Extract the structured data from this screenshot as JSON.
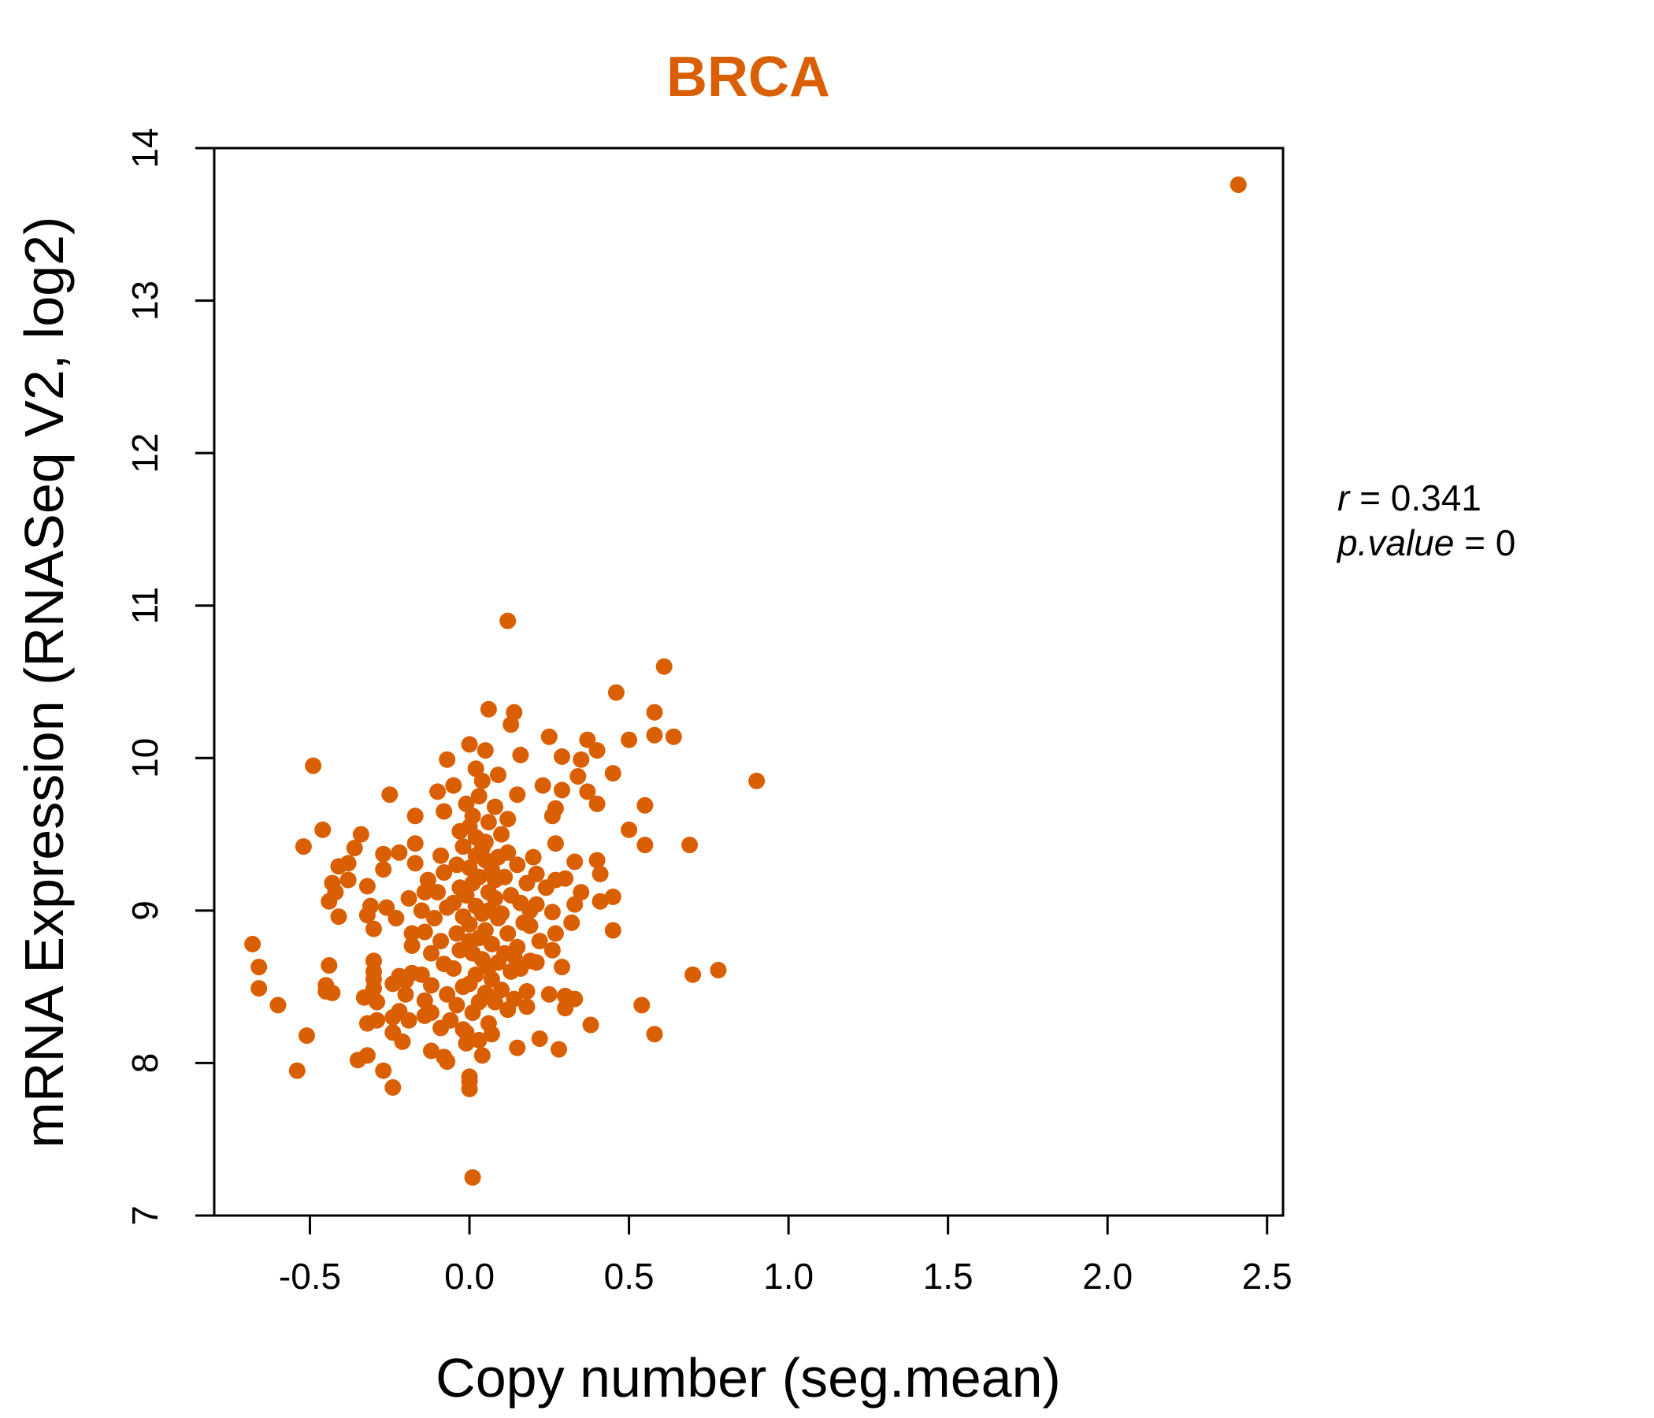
{
  "chart_data": {
    "type": "scatter",
    "title": "BRCA",
    "xlabel": "Copy number (seg.mean)",
    "ylabel": "mRNA Expression (RNASeq V2, log2)",
    "xlim": [
      -0.8,
      2.55
    ],
    "ylim": [
      7,
      14
    ],
    "x_ticks": [
      -0.5,
      0.0,
      0.5,
      1.0,
      1.5,
      2.0,
      2.5
    ],
    "x_tick_labels": [
      "-0.5",
      "0.0",
      "0.5",
      "1.0",
      "1.5",
      "2.0",
      "2.5"
    ],
    "y_ticks": [
      7,
      8,
      9,
      10,
      11,
      12,
      13,
      14
    ],
    "y_tick_labels": [
      "7",
      "8",
      "9",
      "10",
      "11",
      "12",
      "13",
      "14"
    ],
    "grid": false,
    "point_color": "#D95F02",
    "annotations": {
      "r_label": "r",
      "r_value": "0.341",
      "p_label": "p.value",
      "p_value": "0"
    },
    "points": [
      {
        "x": 2.41,
        "y": 13.76
      },
      {
        "x": 0.12,
        "y": 10.9
      },
      {
        "x": 0.61,
        "y": 10.6
      },
      {
        "x": 0.46,
        "y": 10.43
      },
      {
        "x": 0.06,
        "y": 10.32
      },
      {
        "x": 0.58,
        "y": 10.3
      },
      {
        "x": 0.14,
        "y": 10.3
      },
      {
        "x": 0.13,
        "y": 10.22
      },
      {
        "x": 0.58,
        "y": 10.15
      },
      {
        "x": 0.64,
        "y": 10.14
      },
      {
        "x": 0.25,
        "y": 10.14
      },
      {
        "x": 0.5,
        "y": 10.12
      },
      {
        "x": 0.37,
        "y": 10.12
      },
      {
        "x": 0.0,
        "y": 10.09
      },
      {
        "x": 0.05,
        "y": 10.05
      },
      {
        "x": 0.4,
        "y": 10.05
      },
      {
        "x": 0.16,
        "y": 10.02
      },
      {
        "x": 0.29,
        "y": 10.01
      },
      {
        "x": -0.07,
        "y": 9.99
      },
      {
        "x": 0.35,
        "y": 9.99
      },
      {
        "x": -0.49,
        "y": 9.95
      },
      {
        "x": 0.45,
        "y": 9.9
      },
      {
        "x": 0.09,
        "y": 9.89
      },
      {
        "x": 0.34,
        "y": 9.88
      },
      {
        "x": 0.9,
        "y": 9.85
      },
      {
        "x": 0.23,
        "y": 9.82
      },
      {
        "x": -0.05,
        "y": 9.82
      },
      {
        "x": 0.29,
        "y": 9.79
      },
      {
        "x": -0.1,
        "y": 9.78
      },
      {
        "x": 0.37,
        "y": 9.78
      },
      {
        "x": 0.15,
        "y": 9.76
      },
      {
        "x": -0.25,
        "y": 9.76
      },
      {
        "x": 0.4,
        "y": 9.7
      },
      {
        "x": 0.55,
        "y": 9.69
      },
      {
        "x": 0.27,
        "y": 9.67
      },
      {
        "x": -0.08,
        "y": 9.65
      },
      {
        "x": 0.26,
        "y": 9.62
      },
      {
        "x": -0.17,
        "y": 9.62
      },
      {
        "x": 0.12,
        "y": 9.6
      },
      {
        "x": 0.5,
        "y": 9.53
      },
      {
        "x": -0.46,
        "y": 9.53
      },
      {
        "x": -0.34,
        "y": 9.5
      },
      {
        "x": 0.69,
        "y": 9.43
      },
      {
        "x": 0.55,
        "y": 9.43
      },
      {
        "x": 0.27,
        "y": 9.44
      },
      {
        "x": -0.52,
        "y": 9.42
      },
      {
        "x": -0.36,
        "y": 9.41
      },
      {
        "x": -0.17,
        "y": 9.44
      },
      {
        "x": -0.22,
        "y": 9.38
      },
      {
        "x": -0.27,
        "y": 9.37
      },
      {
        "x": -0.09,
        "y": 9.36
      },
      {
        "x": 0.4,
        "y": 9.33
      },
      {
        "x": 0.33,
        "y": 9.32
      },
      {
        "x": -0.17,
        "y": 9.31
      },
      {
        "x": -0.38,
        "y": 9.31
      },
      {
        "x": -0.41,
        "y": 9.29
      },
      {
        "x": -0.27,
        "y": 9.27
      },
      {
        "x": 0.41,
        "y": 9.24
      },
      {
        "x": 0.21,
        "y": 9.24
      },
      {
        "x": 0.3,
        "y": 9.21
      },
      {
        "x": -0.38,
        "y": 9.2
      },
      {
        "x": 0.27,
        "y": 9.2
      },
      {
        "x": -0.43,
        "y": 9.18
      },
      {
        "x": -0.32,
        "y": 9.16
      },
      {
        "x": -0.14,
        "y": 9.12
      },
      {
        "x": 0.35,
        "y": 9.12
      },
      {
        "x": -0.42,
        "y": 9.12
      },
      {
        "x": 0.45,
        "y": 9.09
      },
      {
        "x": -0.19,
        "y": 9.08
      },
      {
        "x": -0.44,
        "y": 9.06
      },
      {
        "x": 0.41,
        "y": 9.06
      },
      {
        "x": 0.33,
        "y": 9.04
      },
      {
        "x": -0.31,
        "y": 9.03
      },
      {
        "x": -0.26,
        "y": 9.02
      },
      {
        "x": 0.21,
        "y": 9.04
      },
      {
        "x": 0.26,
        "y": 8.99
      },
      {
        "x": -0.41,
        "y": 8.96
      },
      {
        "x": -0.32,
        "y": 8.97
      },
      {
        "x": -0.23,
        "y": 8.95
      },
      {
        "x": 0.32,
        "y": 8.92
      },
      {
        "x": 0.19,
        "y": 8.9
      },
      {
        "x": -0.3,
        "y": 8.88
      },
      {
        "x": 0.45,
        "y": 8.87
      },
      {
        "x": -0.14,
        "y": 8.86
      },
      {
        "x": -0.18,
        "y": 8.85
      },
      {
        "x": 0.27,
        "y": 8.85
      },
      {
        "x": -0.68,
        "y": 8.78
      },
      {
        "x": -0.18,
        "y": 8.77
      },
      {
        "x": 0.15,
        "y": 8.76
      },
      {
        "x": 0.26,
        "y": 8.74
      },
      {
        "x": 0.19,
        "y": 8.67
      },
      {
        "x": 0.21,
        "y": 8.66
      },
      {
        "x": -0.3,
        "y": 8.67
      },
      {
        "x": -0.44,
        "y": 8.64
      },
      {
        "x": -0.66,
        "y": 8.63
      },
      {
        "x": 0.29,
        "y": 8.63
      },
      {
        "x": 0.16,
        "y": 8.62
      },
      {
        "x": 0.78,
        "y": 8.61
      },
      {
        "x": -0.3,
        "y": 8.6
      },
      {
        "x": -0.18,
        "y": 8.59
      },
      {
        "x": -0.15,
        "y": 8.58
      },
      {
        "x": -0.22,
        "y": 8.57
      },
      {
        "x": 0.7,
        "y": 8.58
      },
      {
        "x": -0.3,
        "y": 8.55
      },
      {
        "x": -0.2,
        "y": 8.54
      },
      {
        "x": -0.24,
        "y": 8.52
      },
      {
        "x": -0.45,
        "y": 8.51
      },
      {
        "x": -0.12,
        "y": 8.51
      },
      {
        "x": -0.66,
        "y": 8.49
      },
      {
        "x": -0.3,
        "y": 8.49
      },
      {
        "x": -0.45,
        "y": 8.47
      },
      {
        "x": -0.43,
        "y": 8.46
      },
      {
        "x": 0.18,
        "y": 8.47
      },
      {
        "x": 0.25,
        "y": 8.45
      },
      {
        "x": -0.2,
        "y": 8.45
      },
      {
        "x": 0.3,
        "y": 8.44
      },
      {
        "x": -0.33,
        "y": 8.43
      },
      {
        "x": 0.14,
        "y": 8.42
      },
      {
        "x": 0.33,
        "y": 8.42
      },
      {
        "x": -0.14,
        "y": 8.41
      },
      {
        "x": -0.29,
        "y": 8.4
      },
      {
        "x": -0.6,
        "y": 8.38
      },
      {
        "x": 0.54,
        "y": 8.38
      },
      {
        "x": 0.18,
        "y": 8.37
      },
      {
        "x": 0.3,
        "y": 8.36
      },
      {
        "x": -0.22,
        "y": 8.34
      },
      {
        "x": -0.12,
        "y": 8.33
      },
      {
        "x": -0.14,
        "y": 8.31
      },
      {
        "x": -0.24,
        "y": 8.3
      },
      {
        "x": -0.29,
        "y": 8.28
      },
      {
        "x": -0.19,
        "y": 8.28
      },
      {
        "x": -0.32,
        "y": 8.26
      },
      {
        "x": 0.38,
        "y": 8.25
      },
      {
        "x": -0.09,
        "y": 8.23
      },
      {
        "x": -0.02,
        "y": 8.22
      },
      {
        "x": -0.24,
        "y": 8.2
      },
      {
        "x": 0.58,
        "y": 8.19
      },
      {
        "x": 0.07,
        "y": 8.19
      },
      {
        "x": -0.51,
        "y": 8.18
      },
      {
        "x": 0.22,
        "y": 8.16
      },
      {
        "x": -0.21,
        "y": 8.14
      },
      {
        "x": -0.01,
        "y": 8.13
      },
      {
        "x": 0.15,
        "y": 8.1
      },
      {
        "x": 0.28,
        "y": 8.09
      },
      {
        "x": -0.12,
        "y": 8.08
      },
      {
        "x": 0.04,
        "y": 8.05
      },
      {
        "x": -0.32,
        "y": 8.05
      },
      {
        "x": -0.08,
        "y": 8.04
      },
      {
        "x": -0.35,
        "y": 8.02
      },
      {
        "x": -0.07,
        "y": 8.01
      },
      {
        "x": -0.27,
        "y": 7.95
      },
      {
        "x": -0.54,
        "y": 7.95
      },
      {
        "x": 0.0,
        "y": 7.91
      },
      {
        "x": 0.0,
        "y": 7.88
      },
      {
        "x": -0.24,
        "y": 7.84
      },
      {
        "x": 0.0,
        "y": 7.83
      },
      {
        "x": 0.01,
        "y": 7.25
      },
      {
        "x": 0.0,
        "y": 9.55
      },
      {
        "x": 0.02,
        "y": 9.48
      },
      {
        "x": 0.04,
        "y": 9.41
      },
      {
        "x": 0.05,
        "y": 9.33
      },
      {
        "x": 0.07,
        "y": 9.27
      },
      {
        "x": 0.03,
        "y": 9.22
      },
      {
        "x": 0.01,
        "y": 9.18
      },
      {
        "x": 0.06,
        "y": 9.12
      },
      {
        "x": 0.08,
        "y": 9.08
      },
      {
        "x": 0.02,
        "y": 9.03
      },
      {
        "x": 0.04,
        "y": 8.98
      },
      {
        "x": 0.09,
        "y": 8.95
      },
      {
        "x": 0.0,
        "y": 8.91
      },
      {
        "x": 0.05,
        "y": 8.87
      },
      {
        "x": 0.03,
        "y": 8.82
      },
      {
        "x": 0.07,
        "y": 8.78
      },
      {
        "x": 0.01,
        "y": 8.72
      },
      {
        "x": 0.04,
        "y": 8.68
      },
      {
        "x": 0.06,
        "y": 8.63
      },
      {
        "x": 0.02,
        "y": 8.58
      },
      {
        "x": 0.0,
        "y": 8.52
      },
      {
        "x": 0.05,
        "y": 8.46
      },
      {
        "x": 0.03,
        "y": 8.4
      },
      {
        "x": 0.01,
        "y": 8.33
      },
      {
        "x": 0.06,
        "y": 8.26
      },
      {
        "x": -0.02,
        "y": 9.42
      },
      {
        "x": -0.04,
        "y": 9.3
      },
      {
        "x": -0.03,
        "y": 9.15
      },
      {
        "x": -0.05,
        "y": 9.05
      },
      {
        "x": -0.02,
        "y": 8.96
      },
      {
        "x": -0.04,
        "y": 8.85
      },
      {
        "x": -0.03,
        "y": 8.74
      },
      {
        "x": -0.05,
        "y": 8.62
      },
      {
        "x": -0.02,
        "y": 8.5
      },
      {
        "x": -0.04,
        "y": 8.38
      },
      {
        "x": 0.1,
        "y": 9.5
      },
      {
        "x": 0.12,
        "y": 9.38
      },
      {
        "x": 0.11,
        "y": 9.22
      },
      {
        "x": 0.13,
        "y": 9.1
      },
      {
        "x": 0.1,
        "y": 8.98
      },
      {
        "x": 0.12,
        "y": 8.85
      },
      {
        "x": 0.11,
        "y": 8.72
      },
      {
        "x": 0.13,
        "y": 8.6
      },
      {
        "x": 0.1,
        "y": 8.48
      },
      {
        "x": 0.12,
        "y": 8.35
      },
      {
        "x": 0.08,
        "y": 9.68
      },
      {
        "x": 0.03,
        "y": 9.75
      },
      {
        "x": 0.01,
        "y": 9.62
      },
      {
        "x": 0.06,
        "y": 9.58
      },
      {
        "x": -0.01,
        "y": 9.7
      },
      {
        "x": 0.04,
        "y": 9.85
      },
      {
        "x": 0.02,
        "y": 9.93
      },
      {
        "x": -0.08,
        "y": 9.25
      },
      {
        "x": -0.07,
        "y": 9.02
      },
      {
        "x": -0.09,
        "y": 8.8
      },
      {
        "x": -0.08,
        "y": 8.65
      },
      {
        "x": -0.07,
        "y": 8.45
      },
      {
        "x": 0.15,
        "y": 9.3
      },
      {
        "x": 0.16,
        "y": 9.05
      },
      {
        "x": 0.17,
        "y": 8.92
      },
      {
        "x": 0.14,
        "y": 8.7
      },
      {
        "x": 0.18,
        "y": 9.18
      },
      {
        "x": 0.19,
        "y": 9.0
      },
      {
        "x": 0.08,
        "y": 8.4
      },
      {
        "x": 0.07,
        "y": 8.55
      },
      {
        "x": -0.06,
        "y": 8.28
      },
      {
        "x": -0.01,
        "y": 8.2
      },
      {
        "x": 0.03,
        "y": 8.15
      },
      {
        "x": 0.05,
        "y": 9.45
      },
      {
        "x": -0.03,
        "y": 9.52
      },
      {
        "x": 0.09,
        "y": 9.35
      },
      {
        "x": 0.02,
        "y": 9.36
      },
      {
        "x": 0.0,
        "y": 9.28
      },
      {
        "x": 0.08,
        "y": 9.2
      },
      {
        "x": -0.01,
        "y": 9.1
      },
      {
        "x": 0.06,
        "y": 9.0
      },
      {
        "x": 0.0,
        "y": 8.8
      },
      {
        "x": 0.09,
        "y": 8.66
      },
      {
        "x": -0.1,
        "y": 9.12
      },
      {
        "x": -0.11,
        "y": 8.95
      },
      {
        "x": -0.12,
        "y": 8.72
      },
      {
        "x": 0.2,
        "y": 9.35
      },
      {
        "x": 0.22,
        "y": 8.8
      },
      {
        "x": -0.13,
        "y": 9.2
      },
      {
        "x": -0.15,
        "y": 9.0
      },
      {
        "x": 0.24,
        "y": 9.15
      }
    ]
  }
}
